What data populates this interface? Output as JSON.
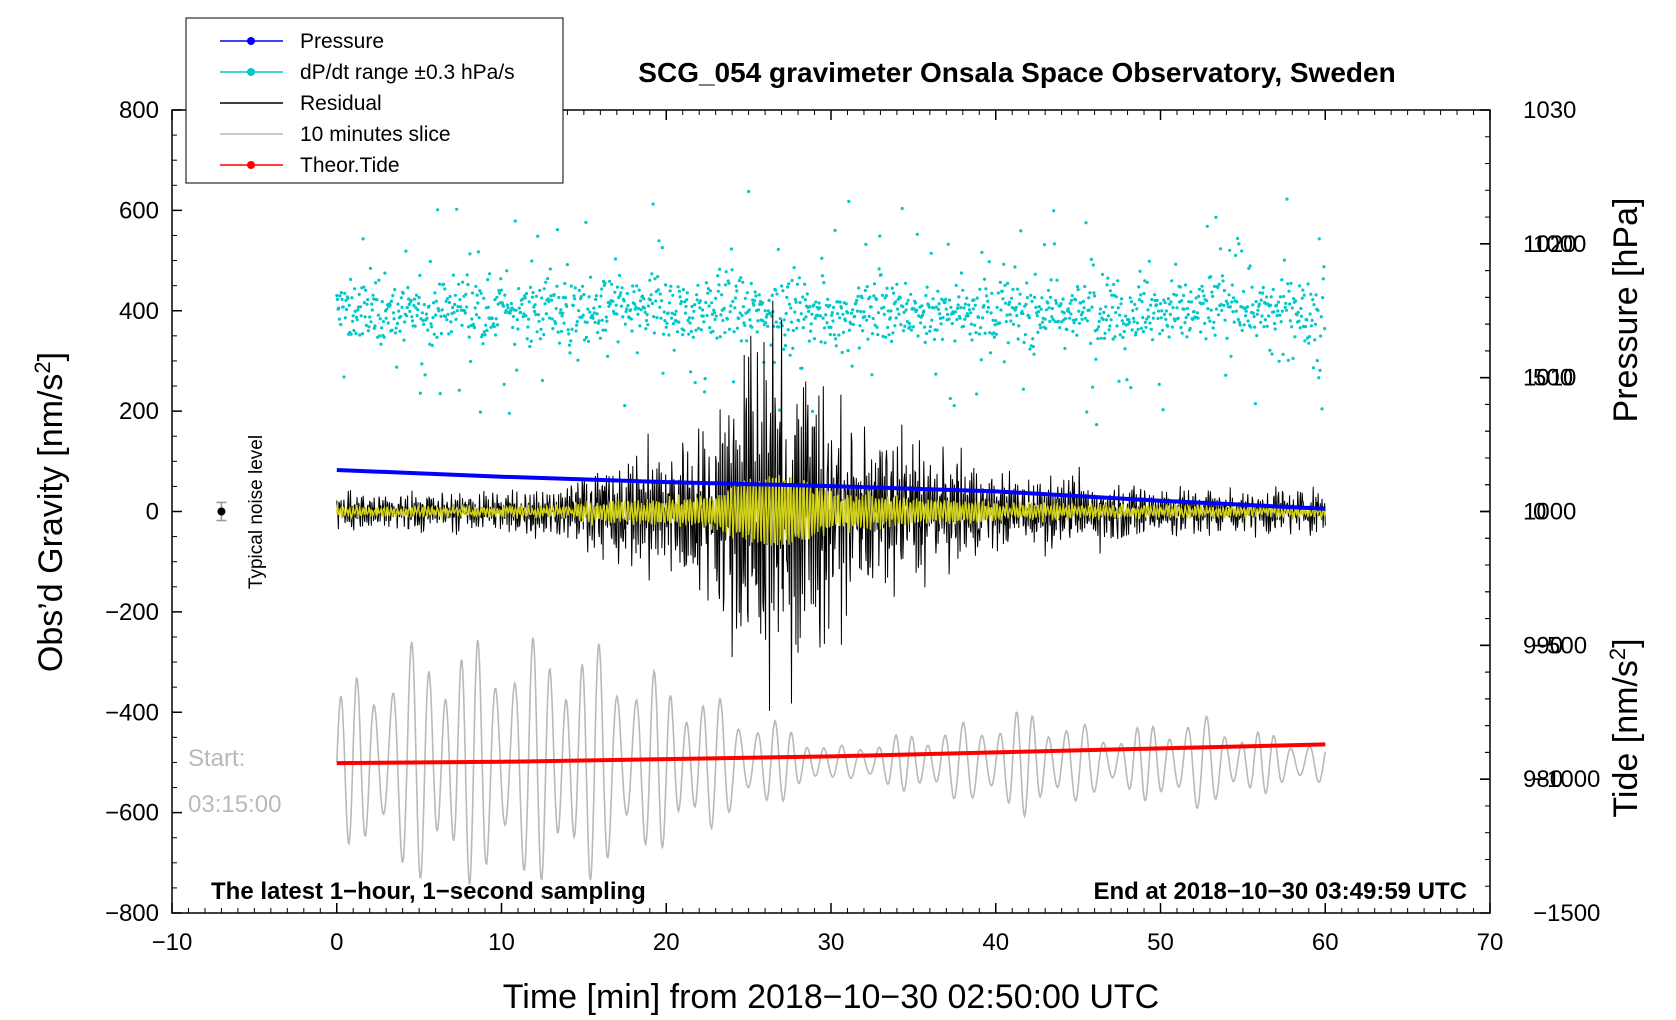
{
  "chart_data": {
    "type": "line",
    "title": "SCG_054 gravimeter Onsala Space Observatory, Sweden",
    "xlabel": "Time [min] from 2018−10−30 02:50:00 UTC",
    "ylabel_main": "Obs’d Gravity [nm/s",
    "ylabel_main_sup": "2",
    "ylabel_main_tail": "]",
    "ylabel_pressure": "Pressure [hPa]",
    "ylabel_tide": "Tide [nm/s",
    "ylabel_tide_sup": "2",
    "ylabel_tide_tail": "]",
    "xlim": [
      -10,
      70
    ],
    "ylim": [
      -800,
      800
    ],
    "pressure_lim": [
      970,
      1030
    ],
    "tide_lim": [
      -1500,
      1500
    ],
    "x_ticks": [
      {
        "v": -10,
        "label": "−10"
      },
      {
        "v": 0,
        "label": "0"
      },
      {
        "v": 10,
        "label": "10"
      },
      {
        "v": 20,
        "label": "20"
      },
      {
        "v": 30,
        "label": "30"
      },
      {
        "v": 40,
        "label": "40"
      },
      {
        "v": 50,
        "label": "50"
      },
      {
        "v": 60,
        "label": "60"
      },
      {
        "v": 70,
        "label": "70"
      }
    ],
    "y_ticks": [
      {
        "v": 800,
        "label": "800"
      },
      {
        "v": 600,
        "label": "600"
      },
      {
        "v": 400,
        "label": "400"
      },
      {
        "v": 200,
        "label": "200"
      },
      {
        "v": 0,
        "label": "0"
      },
      {
        "v": -200,
        "label": "−200"
      },
      {
        "v": -400,
        "label": "−400"
      },
      {
        "v": -600,
        "label": "−600"
      },
      {
        "v": -800,
        "label": "−800"
      }
    ],
    "pressure_ticks": [
      {
        "v": 1030,
        "label": "1030"
      },
      {
        "v": 1020,
        "label": "1020"
      },
      {
        "v": 1010,
        "label": "1010"
      },
      {
        "v": 1000,
        "label": "1000"
      },
      {
        "v": 990,
        "label": "990"
      },
      {
        "v": 980,
        "label": "980"
      }
    ],
    "tide_ticks": [
      {
        "v": 1000,
        "label": "1000"
      },
      {
        "v": 500,
        "label": "500"
      },
      {
        "v": 0,
        "label": "0"
      },
      {
        "v": -500,
        "label": "−500"
      },
      {
        "v": -1000,
        "label": "−1000"
      },
      {
        "v": -1500,
        "label": "−1500"
      }
    ],
    "legend": [
      {
        "label": "Pressure",
        "color": "#0000ff",
        "marker": true
      },
      {
        "label": "dP/dt range ±0.3 hPa/s",
        "color": "#00c8c8",
        "marker": true
      },
      {
        "label": "Residual",
        "color": "#000000",
        "marker": false
      },
      {
        "label": "10 minutes slice",
        "color": "#b9b9b9",
        "marker": false
      },
      {
        "label": "Theor.Tide",
        "color": "#ff0000",
        "marker": true
      }
    ],
    "series": [
      {
        "name": "Pressure",
        "axis": "pressure",
        "color": "#0000ff",
        "x": [
          0,
          10,
          20,
          30,
          40,
          50,
          60
        ],
        "values": [
          1003.1,
          1002.6,
          1002.2,
          1001.9,
          1001.5,
          1000.8,
          1000.2
        ]
      },
      {
        "name": "Theor.Tide",
        "axis": "tide",
        "color": "#ff0000",
        "x": [
          0,
          10,
          20,
          30,
          40,
          50,
          60
        ],
        "values": [
          -940,
          -935,
          -925,
          -915,
          -900,
          -885,
          -870
        ]
      },
      {
        "name": "dP/dt range",
        "axis": "left",
        "color": "#00c8c8",
        "center": 400,
        "spread": 60
      },
      {
        "name": "Residual",
        "axis": "left",
        "color": "#000000",
        "envelope": [
          [
            0,
            35
          ],
          [
            10,
            35
          ],
          [
            14,
            45
          ],
          [
            15,
            80
          ],
          [
            18,
            100
          ],
          [
            20,
            110
          ],
          [
            23,
            150
          ],
          [
            24,
            230
          ],
          [
            25,
            280
          ],
          [
            26,
            300
          ],
          [
            27,
            330
          ],
          [
            28,
            300
          ],
          [
            29,
            230
          ],
          [
            30,
            180
          ],
          [
            33,
            130
          ],
          [
            36,
            110
          ],
          [
            40,
            70
          ],
          [
            45,
            55
          ],
          [
            50,
            45
          ],
          [
            55,
            40
          ],
          [
            60,
            35
          ]
        ]
      },
      {
        "name": "Residual (filtered)",
        "axis": "left",
        "color": "#d2d219"
      },
      {
        "name": "10 minutes slice",
        "axis": "left",
        "color": "#b9b9b9",
        "offset": -500,
        "envelope": [
          [
            0,
            150
          ],
          [
            5,
            250
          ],
          [
            10,
            250
          ],
          [
            14,
            250
          ],
          [
            16,
            240
          ],
          [
            18,
            200
          ],
          [
            22,
            150
          ],
          [
            25,
            100
          ],
          [
            28,
            70
          ],
          [
            30,
            30
          ],
          [
            33,
            50
          ],
          [
            38,
            80
          ],
          [
            42,
            110
          ],
          [
            47,
            60
          ],
          [
            52,
            100
          ],
          [
            55,
            70
          ],
          [
            60,
            40
          ]
        ]
      }
    ],
    "noise_marker": {
      "x": -7,
      "value": 0,
      "error": 18
    },
    "annotations": {
      "noise_label": "Typical noise level",
      "start_label": "Start:",
      "start_time": "03:15:00",
      "latest_note": "The latest 1−hour, 1−second sampling",
      "end_note": "End at 2018−10−30 03:49:59 UTC"
    }
  }
}
